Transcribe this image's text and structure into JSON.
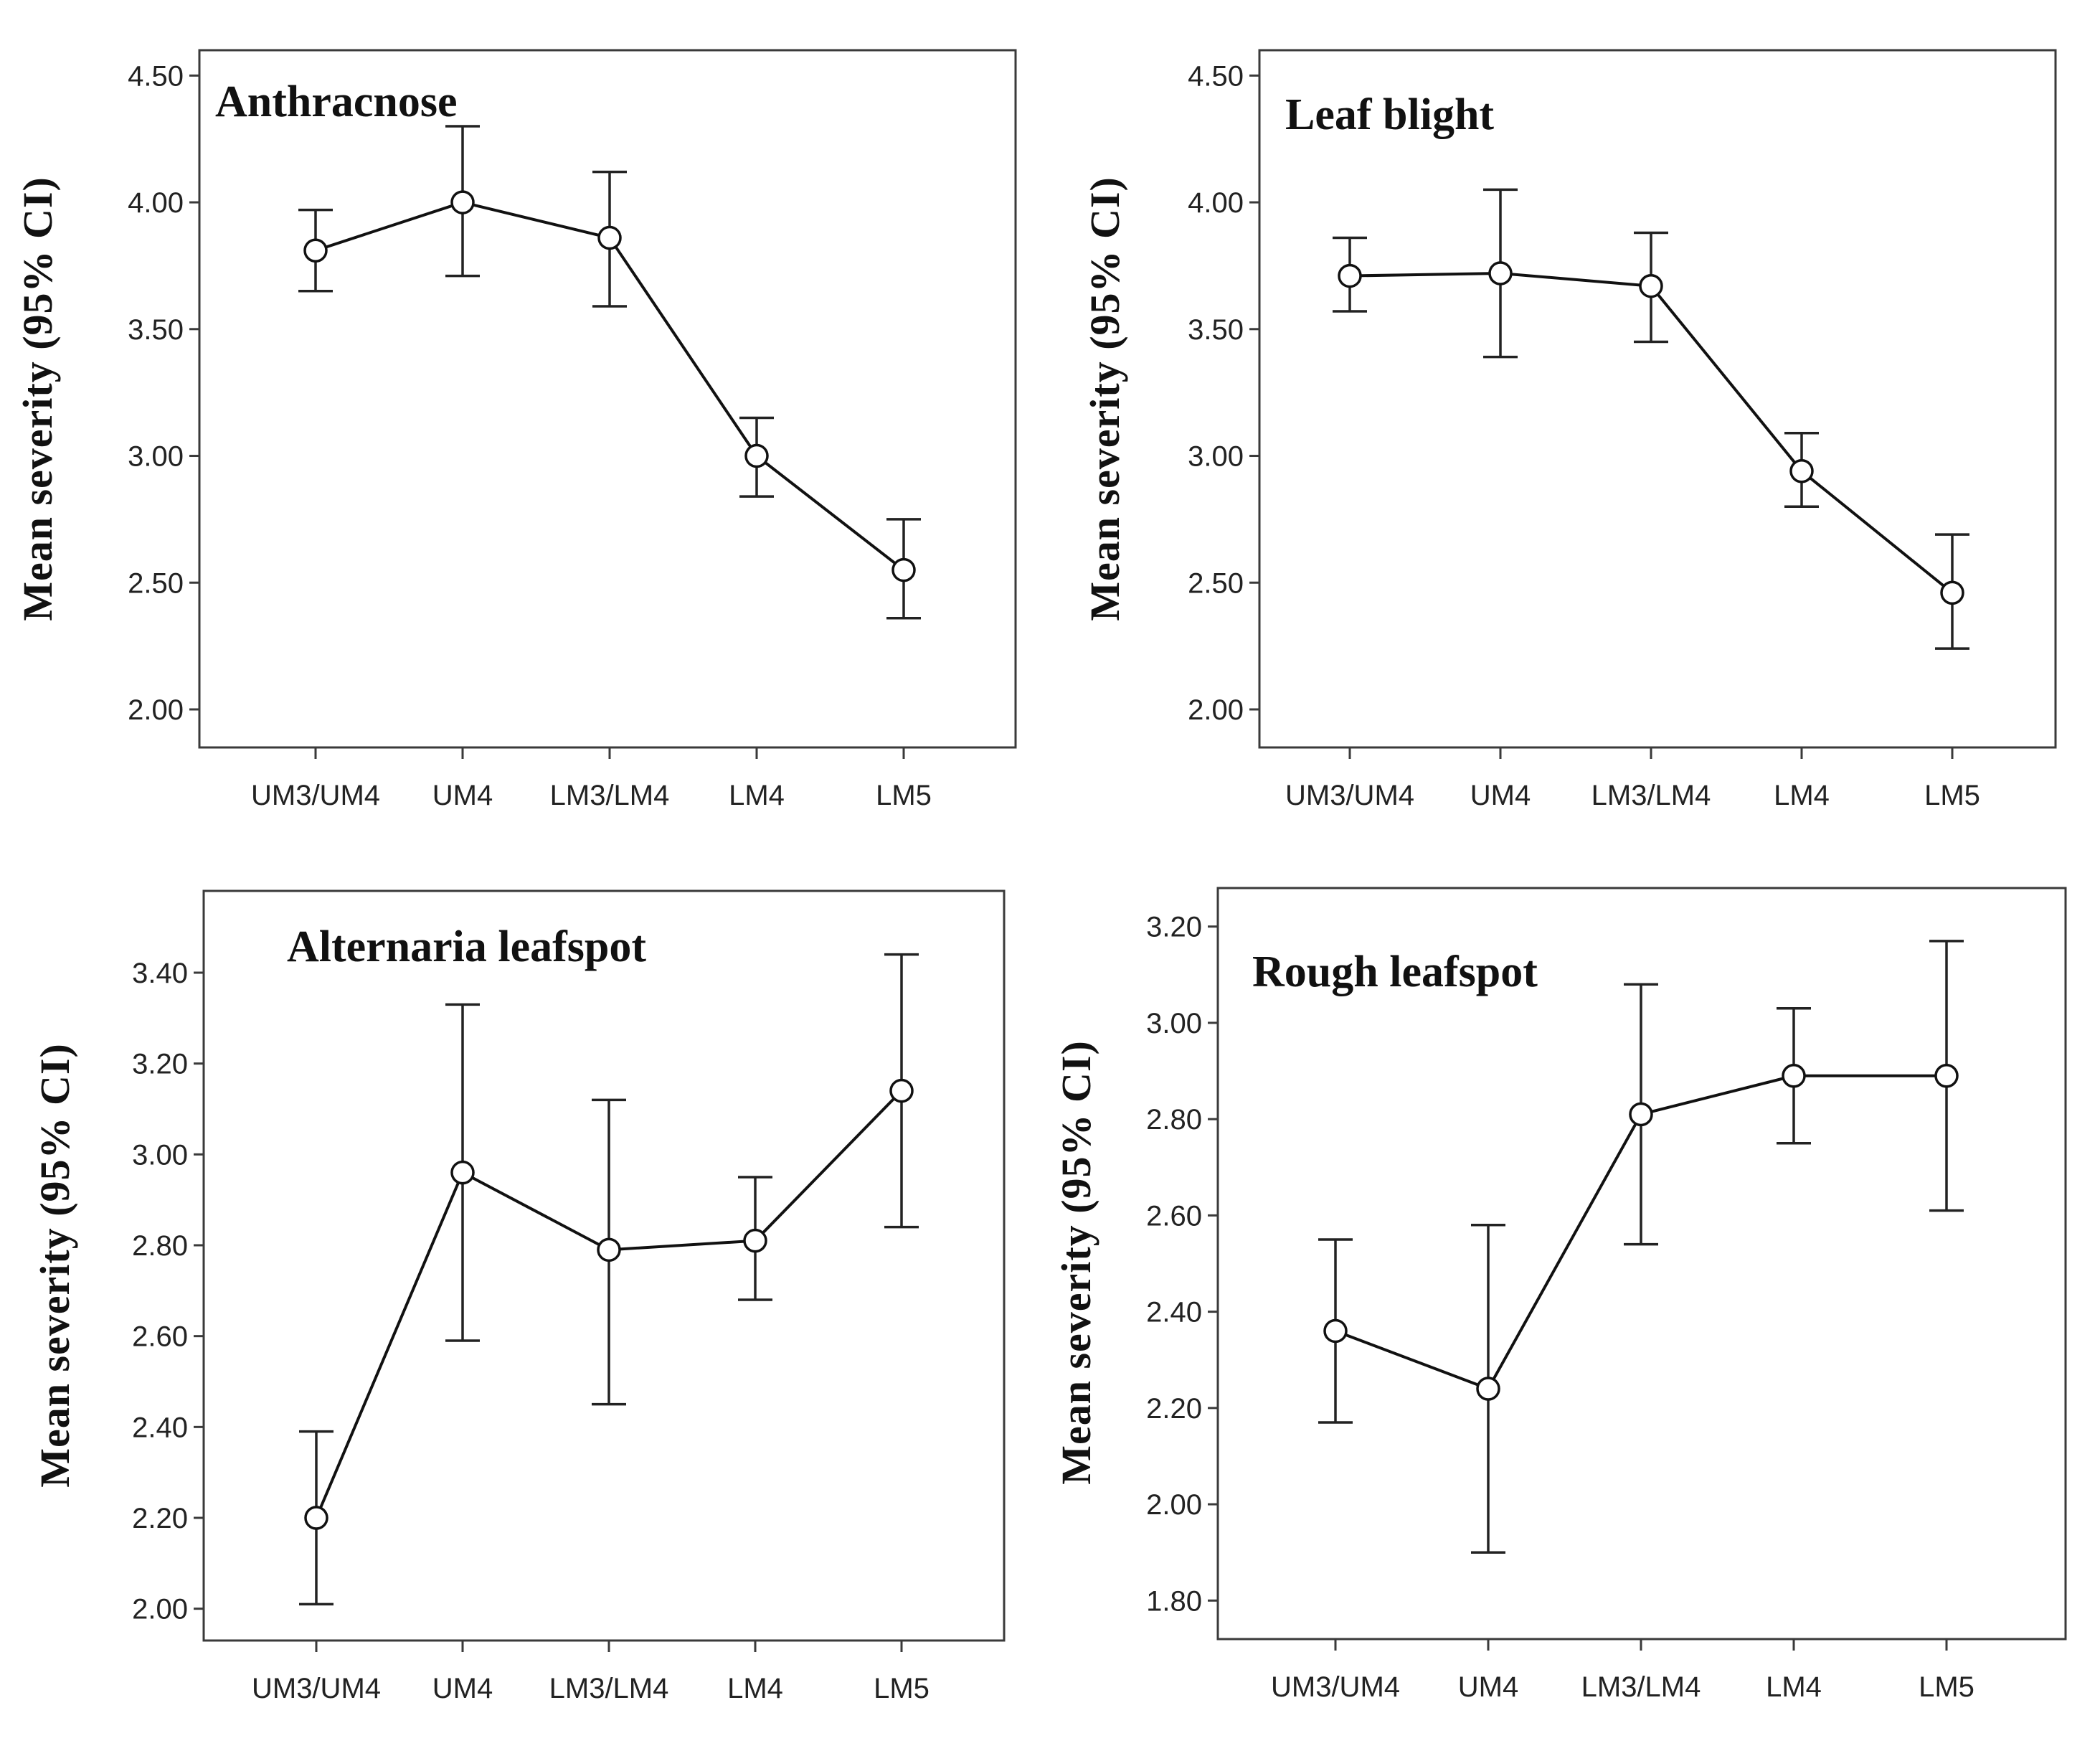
{
  "chart_data": [
    {
      "type": "line",
      "title": "Anthracnose",
      "ylabel": "Mean severity (95% CI)",
      "xlabel": "",
      "categories": [
        "UM3/UM4",
        "UM4",
        "LM3/LM4",
        "LM4",
        "LM5"
      ],
      "values": [
        3.81,
        4.0,
        3.86,
        3.0,
        2.55
      ],
      "ci_low": [
        3.65,
        3.71,
        3.59,
        2.84,
        2.36
      ],
      "ci_high": [
        3.97,
        4.3,
        4.12,
        3.15,
        2.75
      ],
      "ylim": [
        1.85,
        4.6
      ],
      "yticks": [
        2.0,
        2.5,
        3.0,
        3.5,
        4.0,
        4.5
      ],
      "ytick_labels": [
        "2.00",
        "2.50",
        "3.00",
        "3.50",
        "4.00",
        "4.50"
      ]
    },
    {
      "type": "line",
      "title": "Leaf blight",
      "ylabel": "Mean severity (95% CI)",
      "xlabel": "",
      "categories": [
        "UM3/UM4",
        "UM4",
        "LM3/LM4",
        "LM4",
        "LM5"
      ],
      "values": [
        3.71,
        3.72,
        3.67,
        2.94,
        2.46
      ],
      "ci_low": [
        3.57,
        3.39,
        3.45,
        2.8,
        2.24
      ],
      "ci_high": [
        3.86,
        4.05,
        3.88,
        3.09,
        2.69
      ],
      "ylim": [
        1.85,
        4.6
      ],
      "yticks": [
        2.0,
        2.5,
        3.0,
        3.5,
        4.0,
        4.5
      ],
      "ytick_labels": [
        "2.00",
        "2.50",
        "3.00",
        "3.50",
        "4.00",
        "4.50"
      ]
    },
    {
      "type": "line",
      "title": "Alternaria leafspot",
      "ylabel": "Mean severity (95% CI)",
      "xlabel": "",
      "categories": [
        "UM3/UM4",
        "UM4",
        "LM3/LM4",
        "LM4",
        "LM5"
      ],
      "values": [
        2.2,
        2.96,
        2.79,
        2.81,
        3.14
      ],
      "ci_low": [
        2.01,
        2.59,
        2.45,
        2.68,
        2.84
      ],
      "ci_high": [
        2.39,
        3.33,
        3.12,
        2.95,
        3.44
      ],
      "ylim": [
        1.93,
        3.58
      ],
      "yticks": [
        2.0,
        2.2,
        2.4,
        2.6,
        2.8,
        3.0,
        3.2,
        3.4
      ],
      "ytick_labels": [
        "2.00",
        "2.20",
        "2.40",
        "2.60",
        "2.80",
        "3.00",
        "3.20",
        "3.40"
      ]
    },
    {
      "type": "line",
      "title": "Rough leafspot",
      "ylabel": "Mean severity (95% CI)",
      "xlabel": "",
      "categories": [
        "UM3/UM4",
        "UM4",
        "LM3/LM4",
        "LM4",
        "LM5"
      ],
      "values": [
        2.36,
        2.24,
        2.81,
        2.89,
        2.89
      ],
      "ci_low": [
        2.17,
        1.9,
        2.54,
        2.75,
        2.61
      ],
      "ci_high": [
        2.55,
        2.58,
        3.08,
        3.03,
        3.17
      ],
      "ylim": [
        1.72,
        3.28
      ],
      "yticks": [
        1.8,
        2.0,
        2.2,
        2.4,
        2.6,
        2.8,
        3.0,
        3.2
      ],
      "ytick_labels": [
        "1.80",
        "2.00",
        "2.20",
        "2.40",
        "2.60",
        "2.80",
        "3.00",
        "3.20"
      ]
    }
  ]
}
